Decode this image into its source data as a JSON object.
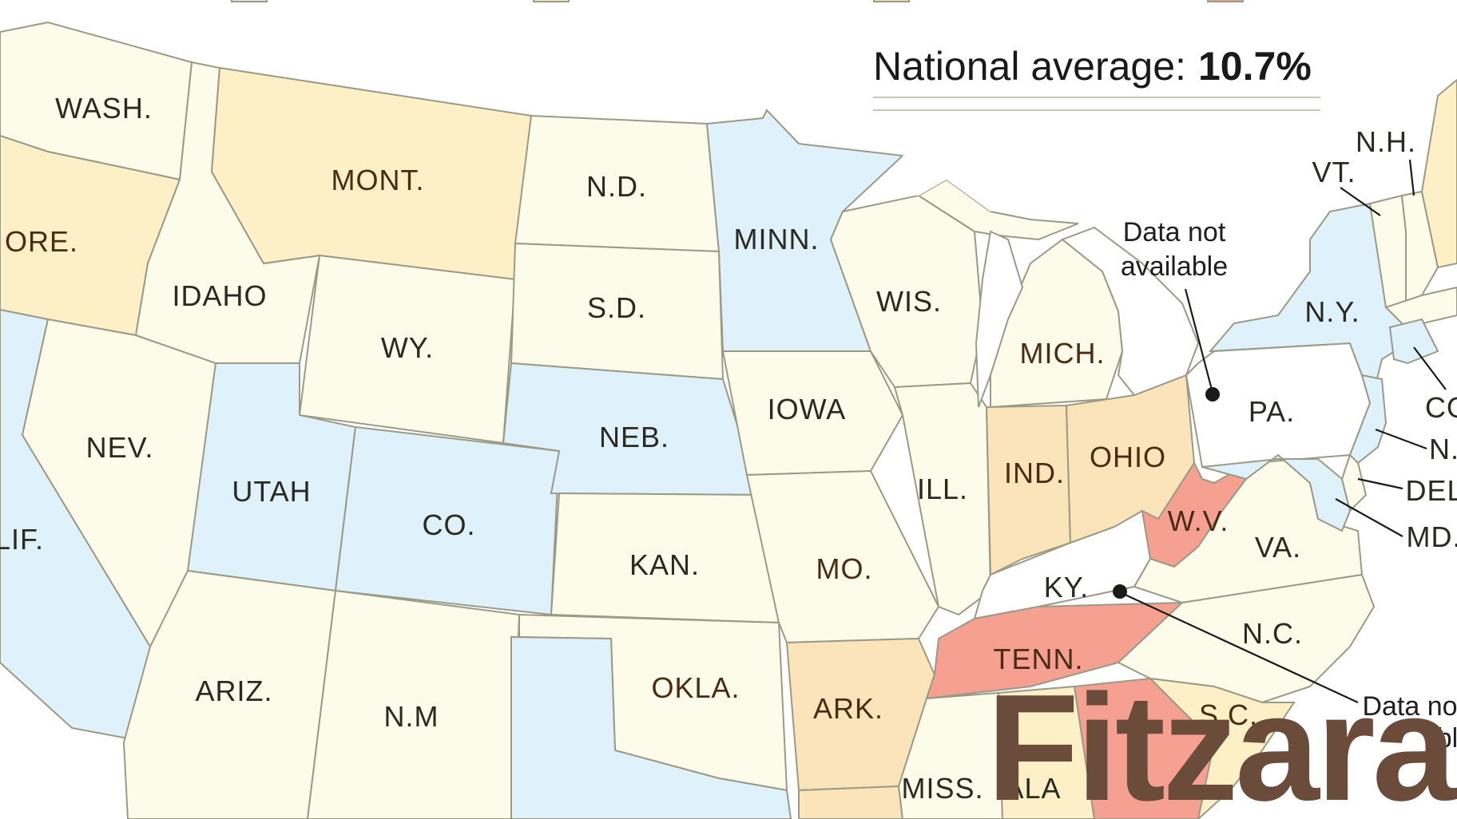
{
  "colors": {
    "very_low": "#dff2fc",
    "low": "#fdfbe9",
    "mid": "#fdf0c6",
    "high": "#fbe3ba",
    "very_high": "#f6a092",
    "no_data": "#ffffff",
    "watermark": "#6b4c3b"
  },
  "header": {
    "average_label": "National average:",
    "average_value": "10.7%"
  },
  "states": {
    "wash": "WASH.",
    "ore": "ORE.",
    "calif": "LIF.",
    "idaho": "IDAHO",
    "nev": "NEV.",
    "mont": "MONT.",
    "wy": "WY.",
    "utah": "UTAH",
    "ariz": "ARIZ.",
    "co": "CO.",
    "nm": "N.M",
    "nd": "N.D.",
    "sd": "S.D.",
    "neb": "NEB.",
    "kan": "KAN.",
    "okla": "OKLA.",
    "minn": "MINN.",
    "iowa": "IOWA",
    "mo": "MO.",
    "ark": "ARK.",
    "wis": "WIS.",
    "ill": "ILL.",
    "mich": "MICH.",
    "ind": "IND.",
    "ohio": "OHIO",
    "ky": "KY.",
    "tenn": "TENN.",
    "miss": "MISS.",
    "ala": "ALA",
    "wv": "W.V.",
    "va": "VA.",
    "nc": "N.C.",
    "sc": "S.C.",
    "pa": "PA.",
    "ny": "N.Y.",
    "vt": "VT.",
    "nh": "N.H.",
    "ct": "CO",
    "nj": "N.",
    "del": "DEL",
    "md": "MD."
  },
  "notes": {
    "pa_line1": "Data not",
    "pa_line2": "available",
    "ky_line1": "Data no",
    "ky_line2": "bl"
  },
  "watermark": "Fitzara"
}
